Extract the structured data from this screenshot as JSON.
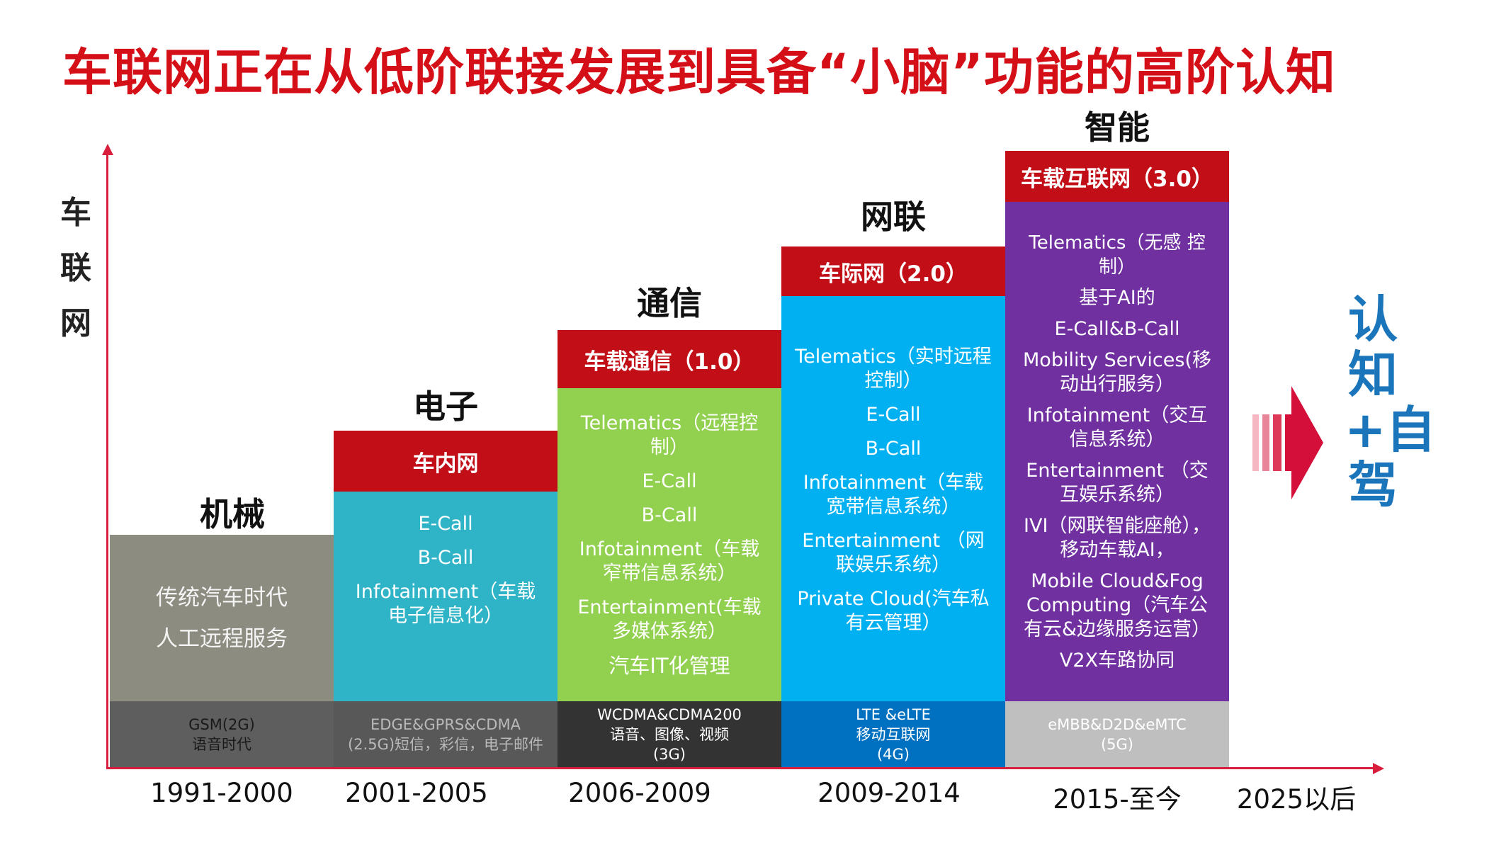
{
  "title": "车联网正在从低阶联接发展到具备“小脑”功能的高阶认知",
  "y_axis_label": "车联网",
  "colors": {
    "title": "#d50f17",
    "header": "#c10e17",
    "axis": "#d81e3c",
    "cognition": "#1b75bb"
  },
  "stages": [
    {
      "stage": "机械",
      "header": "",
      "items": [
        "传统汽车时代",
        "人工远程服务"
      ],
      "network": [
        "GSM(2G)",
        "语音时代"
      ],
      "year": "1991-2000"
    },
    {
      "stage": "电子",
      "header": "车内网",
      "items": [
        "E-Call",
        "B-Call",
        "Infotainment（车载电子信息化）"
      ],
      "network": [
        "EDGE&GPRS&CDMA",
        "(2.5G)短信，彩信，电子邮件"
      ],
      "year": "2001-2005"
    },
    {
      "stage": "通信",
      "header": "车载通信（1.0）",
      "items": [
        "Telematics（远程控制）",
        "E-Call",
        "B-Call",
        "Infotainment（车载窄带信息系统）",
        "Entertainment(车载多媒体系统）",
        "汽车IT化管理"
      ],
      "network": [
        "WCDMA&CDMA200",
        "语音、图像、视频",
        "(3G)"
      ],
      "year": "2006-2009"
    },
    {
      "stage": "网联",
      "header": "车际网（2.0）",
      "items": [
        "Telematics（实时远程控制）",
        "E-Call",
        "B-Call",
        "Infotainment（车载宽带信息系统）",
        "Entertainment （网联娱乐系统）",
        "Private Cloud(汽车私有云管理）"
      ],
      "network": [
        "LTE &eLTE",
        "移动互联网",
        "(4G)"
      ],
      "year": "2009-2014"
    },
    {
      "stage": "智能",
      "header": "车载互联网（3.0）",
      "items": [
        "Telematics（无感 控制）",
        "基于AI的",
        "E-Call&B-Call",
        "Mobility Services(移动出行服务）",
        "Infotainment（交互信息系统）",
        "Entertainment （交互娱乐系统）",
        "IVI（网联智能座舱），移动车载AI，",
        "Mobile Cloud&Fog Computing（汽车公有云&边缘服务运营）",
        "V2X车路协同"
      ],
      "network": [
        "eMBB&D2D&eMTC",
        "(5G)"
      ],
      "year": "2015-至今"
    }
  ],
  "future": {
    "year": "2025以后",
    "label": "认知+自驾"
  }
}
